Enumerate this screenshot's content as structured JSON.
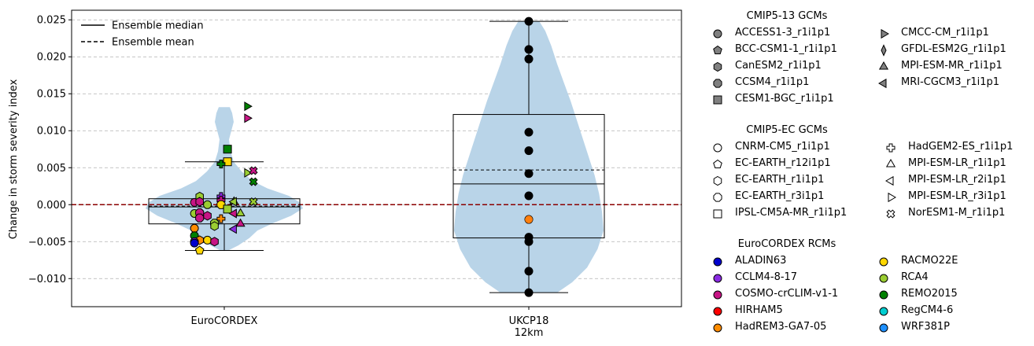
{
  "chart_data": {
    "type": "violin-box-scatter",
    "ylabel": "Change in storm severity index",
    "ylim": [
      -0.0138,
      0.0263
    ],
    "yticks": [
      -0.01,
      -0.005,
      0.0,
      0.005,
      0.01,
      0.015,
      0.02,
      0.025
    ],
    "ytick_labels": [
      "−0.010",
      "−0.005",
      "0.000",
      "0.005",
      "0.010",
      "0.015",
      "0.020",
      "0.025"
    ],
    "categories": [
      "EuroCORDEX",
      "UKCP18\n12km"
    ],
    "reference_line": {
      "value": 0.0,
      "style": "dashed",
      "color": "#8b0000"
    },
    "line_legend": [
      {
        "label": "Ensemble median",
        "style": "solid"
      },
      {
        "label": "Ensemble mean",
        "style": "dashed"
      }
    ],
    "groups": [
      {
        "name": "EuroCORDEX",
        "box": {
          "q1": -0.0026,
          "median": -0.0003,
          "q3": 0.0008,
          "whisker_low": -0.0062,
          "whisker_high": 0.0058,
          "mean": -0.0002
        },
        "violin": [
          [
            -0.0062,
            0.05
          ],
          [
            -0.0055,
            0.18
          ],
          [
            -0.0045,
            0.32
          ],
          [
            -0.0035,
            0.42
          ],
          [
            -0.0025,
            0.62
          ],
          [
            -0.0015,
            0.85
          ],
          [
            -0.0005,
            1.0
          ],
          [
            0.0003,
            0.96
          ],
          [
            0.0012,
            0.82
          ],
          [
            0.0022,
            0.55
          ],
          [
            0.0032,
            0.36
          ],
          [
            0.0045,
            0.22
          ],
          [
            0.0058,
            0.12
          ],
          [
            0.0072,
            0.08
          ],
          [
            0.0088,
            0.06
          ],
          [
            0.01,
            0.09
          ],
          [
            0.0112,
            0.12
          ],
          [
            0.0124,
            0.1
          ],
          [
            0.0132,
            0.07
          ]
        ],
        "points": [
          {
            "x": 0.35,
            "y": 0.0133,
            "gcm": "CMCC-CM_r1i1p1",
            "rcm": "REMO2015"
          },
          {
            "x": 0.35,
            "y": 0.0117,
            "gcm": "CMCC-CM_r1i1p1",
            "rcm": "COSMO-crCLIM-v1-1"
          },
          {
            "x": 0.05,
            "y": 0.0075,
            "gcm": "CESM1-BGC_r1i1p1",
            "rcm": "REMO2015"
          },
          {
            "x": 0.05,
            "y": 0.0058,
            "gcm": "CESM1-BGC_r1i1p1",
            "rcm": "RACMO22E"
          },
          {
            "x": -0.05,
            "y": 0.0055,
            "gcm": "HadGEM2-ES_r1i1p1",
            "rcm": "REMO2015"
          },
          {
            "x": 0.35,
            "y": 0.0043,
            "gcm": "MPI-ESM-LR_r3i1p1",
            "rcm": "RCA4"
          },
          {
            "x": 0.45,
            "y": 0.0046,
            "gcm": "NorESM1-M_r1i1p1",
            "rcm": "COSMO-crCLIM-v1-1"
          },
          {
            "x": 0.45,
            "y": 0.0031,
            "gcm": "NorESM1-M_r1i1p1",
            "rcm": "REMO2015"
          },
          {
            "x": -0.38,
            "y": 0.0011,
            "gcm": "CanESM2_r1i1p1",
            "rcm": "RCA4"
          },
          {
            "x": -0.05,
            "y": 0.0011,
            "gcm": "HadGEM2-ES_r1i1p1",
            "rcm": "CCLM4-8-17"
          },
          {
            "x": -0.05,
            "y": 0.0006,
            "gcm": "HadGEM2-ES_r1i1p1",
            "rcm": "COSMO-crCLIM-v1-1"
          },
          {
            "x": -0.46,
            "y": 0.0003,
            "gcm": "ACCESS1-3_r1i1p1",
            "rcm": "COSMO-crCLIM-v1-1"
          },
          {
            "x": -0.38,
            "y": 0.0004,
            "gcm": "CanESM2_r1i1p1",
            "rcm": "COSMO-crCLIM-v1-1"
          },
          {
            "x": -0.26,
            "y": 0.0,
            "gcm": "ACCESS1-3_r1i1p1",
            "rcm": "RCA4"
          },
          {
            "x": -0.05,
            "y": 0.0,
            "gcm": "EC-EARTH_r3i1p1",
            "rcm": "RACMO22E"
          },
          {
            "x": 0.15,
            "y": 0.0004,
            "gcm": "MPI-ESM-MR_r1i1p1",
            "rcm": "RCA4"
          },
          {
            "x": 0.15,
            "y": 0.0004,
            "gcm": "MRI-CGCM3_r1i1p1",
            "rcm": "RCA4"
          },
          {
            "x": 0.45,
            "y": 0.0004,
            "gcm": "NorESM1-M_r1i1p1",
            "rcm": "RCA4"
          },
          {
            "x": -0.46,
            "y": -0.0012,
            "gcm": "ACCESS1-3_r1i1p1",
            "rcm": "RCA4"
          },
          {
            "x": -0.38,
            "y": -0.0011,
            "gcm": "CCSM4_r1i1p1",
            "rcm": "COSMO-crCLIM-v1-1"
          },
          {
            "x": -0.38,
            "y": -0.0018,
            "gcm": "CCSM4_r1i1p1",
            "rcm": "COSMO-crCLIM-v1-1"
          },
          {
            "x": -0.26,
            "y": -0.0015,
            "gcm": "CanESM2_r1i1p1",
            "rcm": "COSMO-crCLIM-v1-1"
          },
          {
            "x": 0.05,
            "y": -0.0006,
            "gcm": "IPSL-CM5A-MR_r1i1p1",
            "rcm": "RCA4"
          },
          {
            "x": 0.15,
            "y": -0.0012,
            "gcm": "MPI-ESM-LR_r2i1p1",
            "rcm": "COSMO-crCLIM-v1-1"
          },
          {
            "x": 0.25,
            "y": -0.0012,
            "gcm": "MPI-ESM-MR_r1i1p1",
            "rcm": "RCA4"
          },
          {
            "x": -0.05,
            "y": -0.0019,
            "gcm": "HadGEM2-ES_r1i1p1",
            "rcm": "HadREM3-GA7-05"
          },
          {
            "x": -0.15,
            "y": -0.0025,
            "gcm": "CCSM4_r1i1p1",
            "rcm": "RCA4"
          },
          {
            "x": -0.15,
            "y": -0.0029,
            "gcm": "EC-EARTH_r1i1p1",
            "rcm": "RCA4"
          },
          {
            "x": 0.15,
            "y": -0.0033,
            "gcm": "MRI-CGCM3_r1i1p1",
            "rcm": "CCLM4-8-17"
          },
          {
            "x": 0.25,
            "y": -0.0026,
            "gcm": "MPI-ESM-MR_r1i1p1",
            "rcm": "COSMO-crCLIM-v1-1"
          },
          {
            "x": -0.46,
            "y": -0.0032,
            "gcm": "ACCESS1-3_r1i1p1",
            "rcm": "HadREM3-GA7-05"
          },
          {
            "x": -0.46,
            "y": -0.0042,
            "gcm": "ACCESS1-3_r1i1p1",
            "rcm": "REMO2015"
          },
          {
            "x": -0.38,
            "y": -0.0048,
            "gcm": "CanESM2_r1i1p1",
            "rcm": "HadREM3-GA7-05"
          },
          {
            "x": -0.26,
            "y": -0.0048,
            "gcm": "ACCESS1-3_r1i1p1",
            "rcm": "RACMO22E"
          },
          {
            "x": -0.15,
            "y": -0.005,
            "gcm": "CanESM2_r1i1p1",
            "rcm": "COSMO-crCLIM-v1-1"
          },
          {
            "x": -0.46,
            "y": -0.005,
            "gcm": "ACCESS1-3_r1i1p1",
            "rcm": "CCLM4-8-17"
          },
          {
            "x": -0.46,
            "y": -0.0052,
            "gcm": "ACCESS1-3_r1i1p1",
            "rcm": "ALADIN63"
          },
          {
            "x": -0.38,
            "y": -0.0062,
            "gcm": "BCC-CSM1-1_r1i1p1",
            "rcm": "RACMO22E"
          }
        ]
      },
      {
        "name": "UKCP18 12km",
        "box": {
          "q1": -0.0045,
          "median": 0.0028,
          "q3": 0.0122,
          "whisker_low": -0.0119,
          "whisker_high": 0.0248,
          "mean": 0.0047
        },
        "violin": [
          [
            -0.0119,
            0.38
          ],
          [
            -0.0105,
            0.58
          ],
          [
            -0.0085,
            0.78
          ],
          [
            -0.006,
            0.92
          ],
          [
            -0.0035,
            1.0
          ],
          [
            -0.001,
            0.98
          ],
          [
            0.0015,
            0.94
          ],
          [
            0.004,
            0.88
          ],
          [
            0.0065,
            0.8
          ],
          [
            0.009,
            0.72
          ],
          [
            0.0115,
            0.64
          ],
          [
            0.014,
            0.56
          ],
          [
            0.0165,
            0.47
          ],
          [
            0.019,
            0.38
          ],
          [
            0.0215,
            0.3
          ],
          [
            0.0235,
            0.22
          ],
          [
            0.0248,
            0.14
          ]
        ],
        "points": [
          {
            "y": 0.0248,
            "color": "#000000"
          },
          {
            "y": 0.021,
            "color": "#000000"
          },
          {
            "y": 0.0197,
            "color": "#000000"
          },
          {
            "y": 0.0098,
            "color": "#000000"
          },
          {
            "y": 0.0073,
            "color": "#000000"
          },
          {
            "y": 0.0042,
            "color": "#000000"
          },
          {
            "y": 0.0012,
            "color": "#000000"
          },
          {
            "y": -0.002,
            "color": "#ff7f0e"
          },
          {
            "y": -0.0044,
            "color": "#000000"
          },
          {
            "y": -0.005,
            "color": "#000000"
          },
          {
            "y": -0.009,
            "color": "#000000"
          },
          {
            "y": -0.0119,
            "color": "#000000"
          }
        ]
      }
    ]
  },
  "legends": {
    "cmip5_13": {
      "title": "CMIP5-13 GCMs",
      "items": [
        {
          "label": "ACCESS1-3_r1i1p1",
          "marker": "circle"
        },
        {
          "label": "BCC-CSM1-1_r1i1p1",
          "marker": "pentagon"
        },
        {
          "label": "CanESM2_r1i1p1",
          "marker": "hexagon"
        },
        {
          "label": "CCSM4_r1i1p1",
          "marker": "octagon"
        },
        {
          "label": "CESM1-BGC_r1i1p1",
          "marker": "square"
        },
        {
          "label": "CMCC-CM_r1i1p1",
          "marker": "triangle-right"
        },
        {
          "label": "GFDL-ESM2G_r1i1p1",
          "marker": "thin-diamond"
        },
        {
          "label": "MPI-ESM-MR_r1i1p1",
          "marker": "triangle-up"
        },
        {
          "label": "MRI-CGCM3_r1i1p1",
          "marker": "triangle-left"
        }
      ]
    },
    "cmip5_ec": {
      "title": "CMIP5-EC GCMs",
      "items": [
        {
          "label": "CNRM-CM5_r1i1p1",
          "marker": "circle"
        },
        {
          "label": "EC-EARTH_r12i1p1",
          "marker": "pentagon"
        },
        {
          "label": "EC-EARTH_r1i1p1",
          "marker": "hexagon"
        },
        {
          "label": "EC-EARTH_r3i1p1",
          "marker": "octagon"
        },
        {
          "label": "IPSL-CM5A-MR_r1i1p1",
          "marker": "square"
        },
        {
          "label": "HadGEM2-ES_r1i1p1",
          "marker": "plus"
        },
        {
          "label": "MPI-ESM-LR_r1i1p1",
          "marker": "triangle-up"
        },
        {
          "label": "MPI-ESM-LR_r2i1p1",
          "marker": "triangle-left"
        },
        {
          "label": "MPI-ESM-LR_r3i1p1",
          "marker": "triangle-right"
        },
        {
          "label": "NorESM1-M_r1i1p1",
          "marker": "x"
        }
      ]
    },
    "rcms": {
      "title": "EuroCORDEX RCMs",
      "items": [
        {
          "label": "ALADIN63",
          "color": "#0000cd"
        },
        {
          "label": "CCLM4-8-17",
          "color": "#8a2be2"
        },
        {
          "label": "COSMO-crCLIM-v1-1",
          "color": "#c71585"
        },
        {
          "label": "HIRHAM5",
          "color": "#ff0000"
        },
        {
          "label": "HadREM3-GA7-05",
          "color": "#ff8c00"
        },
        {
          "label": "RACMO22E",
          "color": "#ffd700"
        },
        {
          "label": "RCA4",
          "color": "#9acd32"
        },
        {
          "label": "REMO2015",
          "color": "#008000"
        },
        {
          "label": "RegCM4-6",
          "color": "#00ced1"
        },
        {
          "label": "WRF381P",
          "color": "#1e90ff"
        }
      ]
    }
  },
  "colors": {
    "violin": "#b9d4e8",
    "grid": "#b0b0b0",
    "zero_line": "#8b0000",
    "gcm_marker_fill": "#808080"
  }
}
